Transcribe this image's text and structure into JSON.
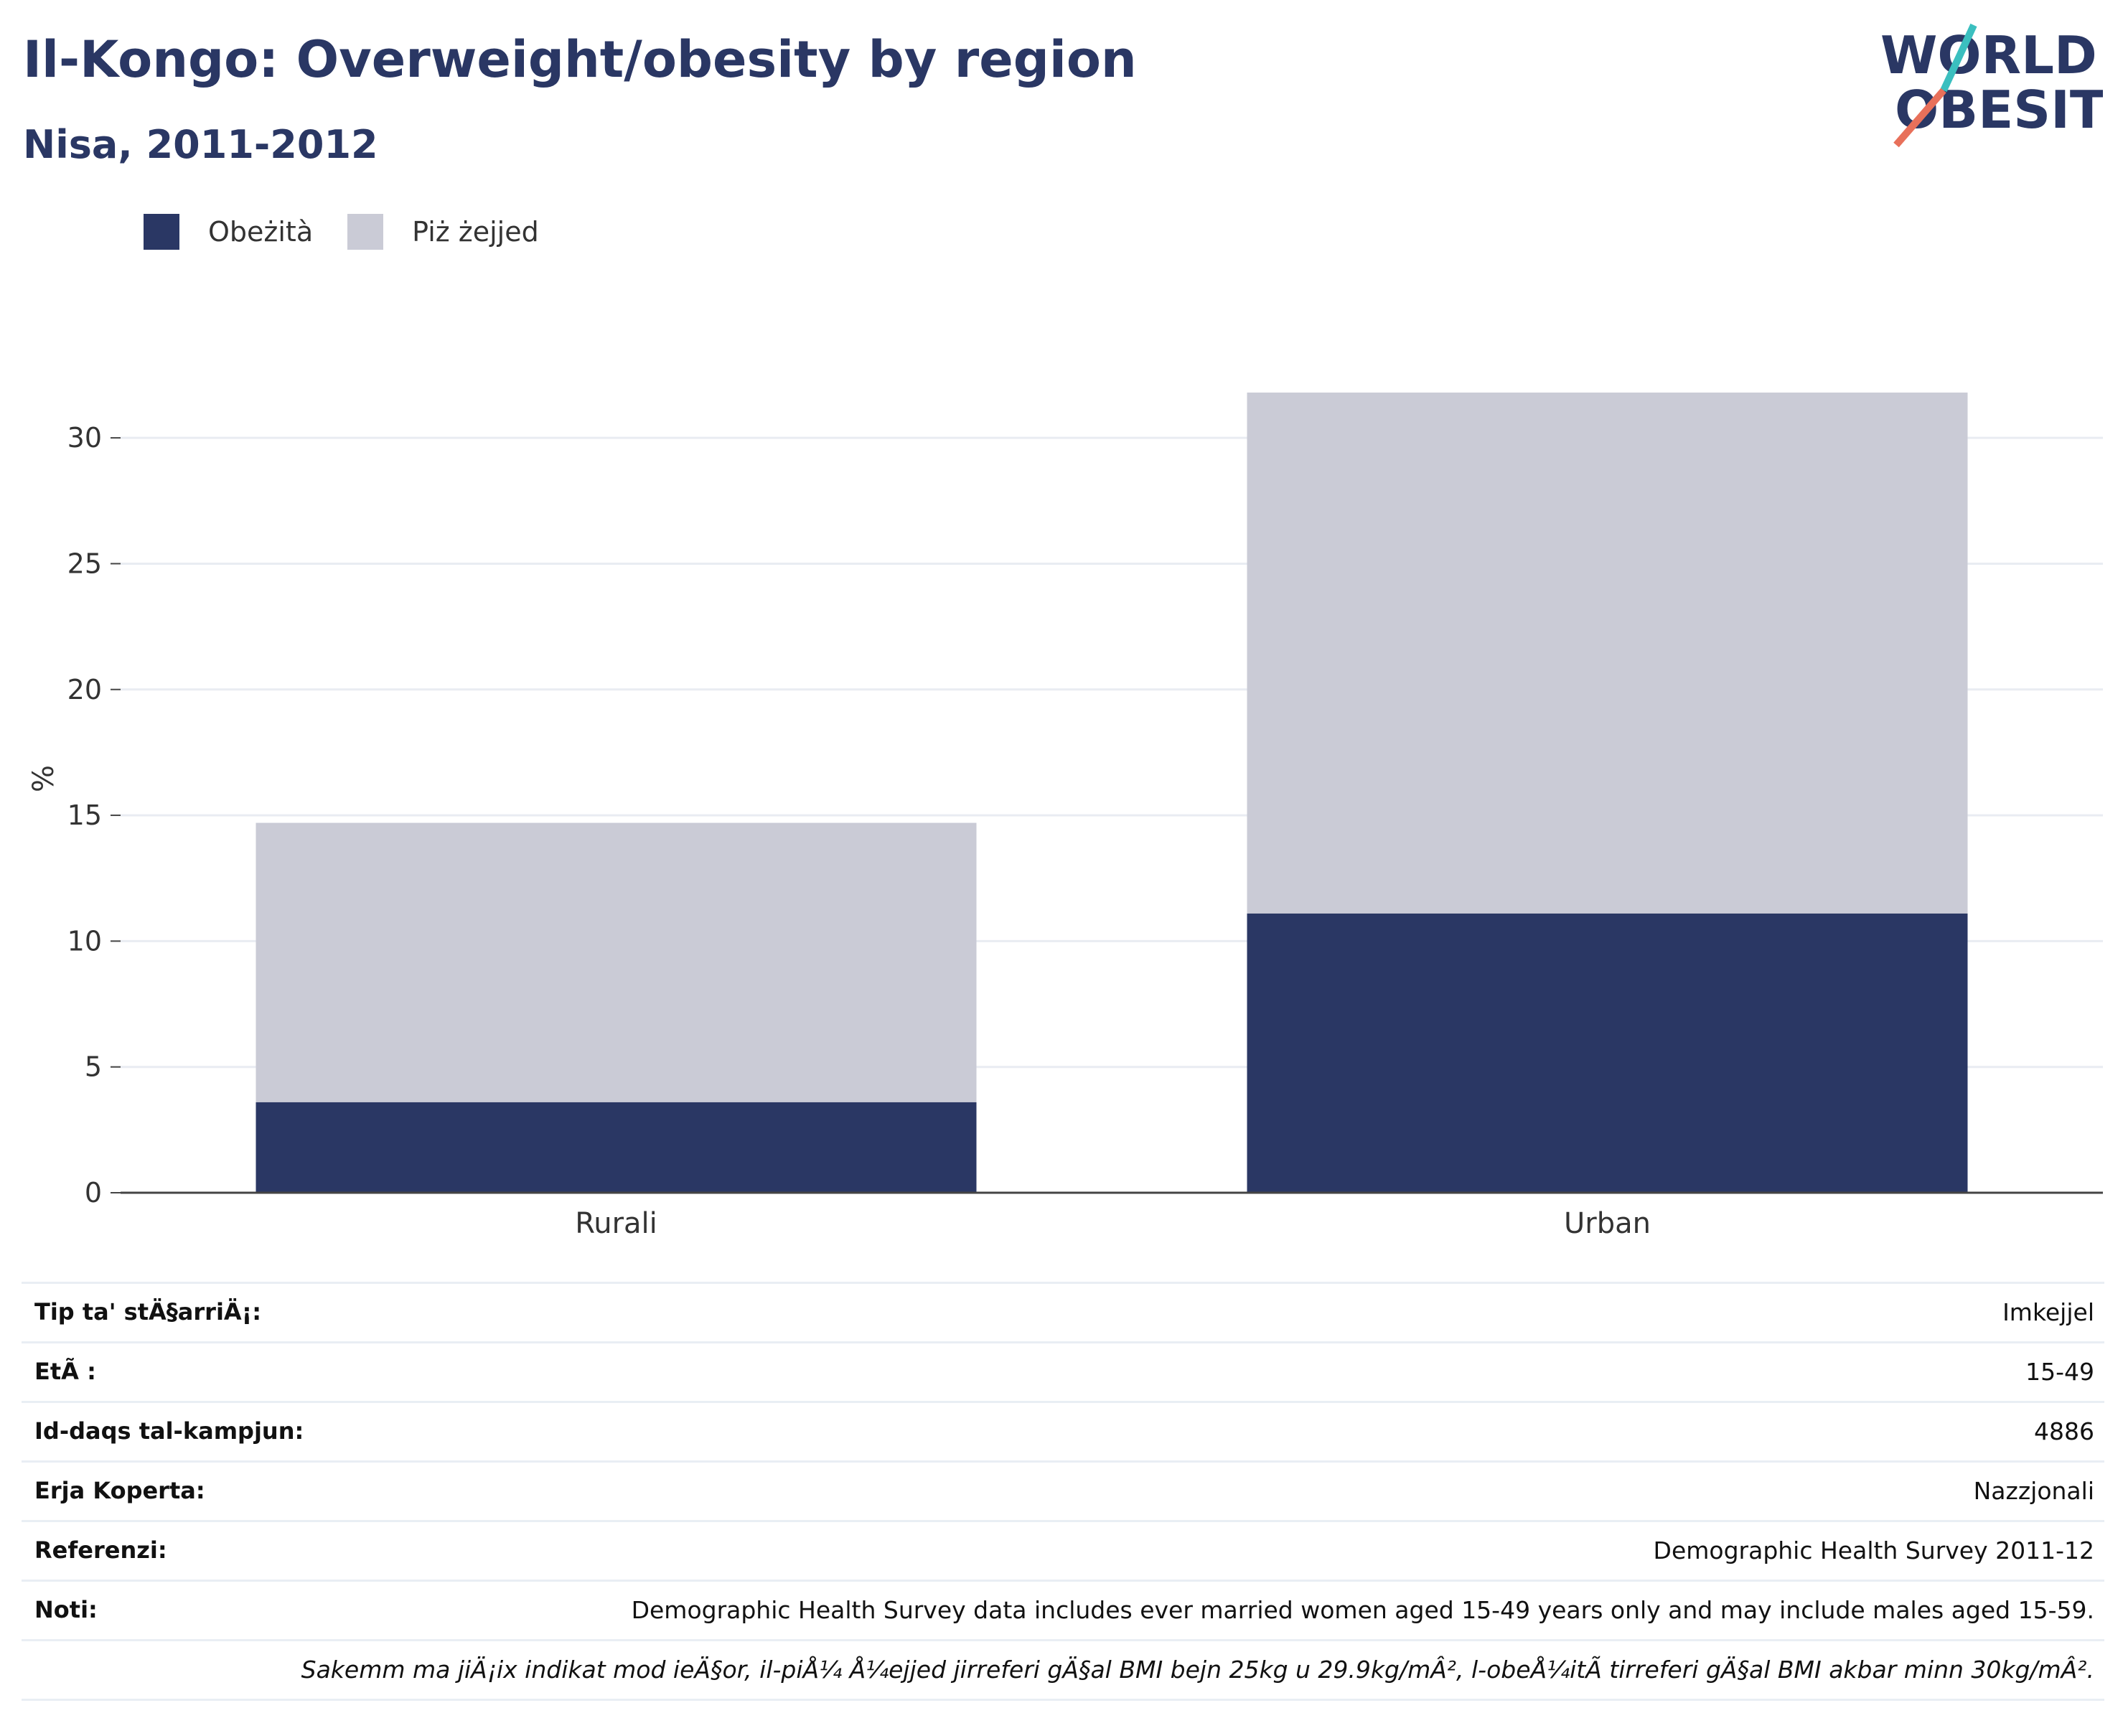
{
  "header": {
    "title": "Il-Kongo: Overweight/obesity by region",
    "subtitle": "Nisa, 2011-2012"
  },
  "logo": {
    "line1": "WORLD",
    "line2": "OBESITY",
    "colors": {
      "text": "#2a3764",
      "slash_teal": "#3bbfbf",
      "slash_coral": "#e8705a"
    }
  },
  "legend": [
    {
      "label": "Obeżità",
      "color": "#2a3764"
    },
    {
      "label": "Piż żejjed",
      "color": "#cacbd6"
    }
  ],
  "chart_data": {
    "type": "bar",
    "stacked": true,
    "categories": [
      "Rurali",
      "Urban"
    ],
    "series": [
      {
        "name": "Obeżità",
        "values": [
          3.6,
          11.1
        ],
        "color": "#2a3764"
      },
      {
        "name": "Piż żejjed",
        "values": [
          11.1,
          20.7
        ],
        "color": "#cacbd6"
      }
    ],
    "ylabel": "%",
    "ylim": [
      0,
      32
    ],
    "yticks": [
      0,
      5,
      10,
      15,
      20,
      25,
      30
    ],
    "grid": true,
    "legend_position": "top-left"
  },
  "info_table": [
    {
      "key": "Tip ta' stÄ§arriÄ¡:",
      "value": "Imkejjel"
    },
    {
      "key": "EtÃ :",
      "value": "15-49"
    },
    {
      "key": "Id-daqs tal-kampjun:",
      "value": "4886"
    },
    {
      "key": "Erja Koperta:",
      "value": "Nazzjonali"
    },
    {
      "key": "Referenzi:",
      "value": "Demographic Health Survey 2011-12"
    },
    {
      "key": "Noti:",
      "value": "Demographic Health Survey data includes ever married women aged 15-49 years only and may include males aged 15-59."
    },
    {
      "key": "",
      "value": "Sakemm ma jiÄ¡ix indikat mod ieÄ§or, il-piÅ¼ Å¼ejjed jirreferi gÄ§al BMI bejn 25kg u 29.9kg/mÂ², l-obeÅ¼itÃ  tirreferi gÄ§al BMI akbar minn 30kg/mÂ².",
      "italic": true
    }
  ]
}
